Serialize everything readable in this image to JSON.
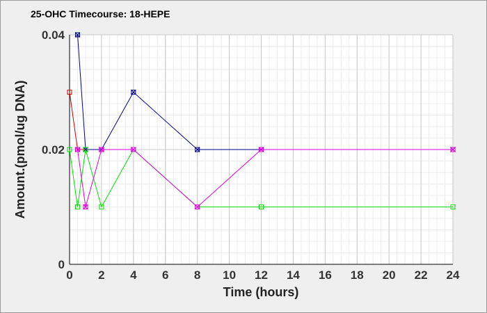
{
  "chart_data": {
    "type": "line",
    "title": "25-OHC Timecourse: 18-HEPE",
    "xlabel": "Time (hours)",
    "ylabel": "Amount.(pmol/ug DNA)",
    "xlim": [
      0,
      24
    ],
    "ylim": [
      0,
      0.04
    ],
    "x_ticks": [
      0,
      2,
      4,
      6,
      8,
      10,
      12,
      14,
      16,
      18,
      20,
      22,
      24
    ],
    "x_tick_labels": [
      "0",
      "2",
      "4",
      "6",
      "8",
      "10",
      "12",
      "14",
      "16",
      "18",
      "20",
      "22",
      "24"
    ],
    "y_ticks": [
      0,
      0.02,
      0.04
    ],
    "y_tick_labels": [
      "0",
      "0.02",
      "0.04"
    ],
    "grid": true,
    "legend": "none",
    "series": [
      {
        "color": "#000080",
        "marker": "cross-square",
        "x": [
          0.5,
          1,
          2,
          4,
          8,
          12,
          24
        ],
        "y": [
          0.04,
          0.02,
          0.02,
          0.03,
          0.02,
          0.02,
          0.02
        ]
      },
      {
        "color": "#cc0000",
        "marker": "square",
        "x": [
          0,
          0.5,
          1
        ],
        "y": [
          0.03,
          0.02,
          0.02
        ]
      },
      {
        "color": "#00dd00",
        "marker": "square",
        "x": [
          0,
          0.5,
          1,
          2,
          4,
          8,
          12,
          24
        ],
        "y": [
          0.02,
          0.01,
          0.02,
          0.01,
          0.02,
          0.01,
          0.01,
          0.01
        ]
      },
      {
        "color": "#dd00dd",
        "marker": "cross-square",
        "x": [
          0.5,
          1,
          2,
          4,
          8,
          12,
          24
        ],
        "y": [
          0.02,
          0.01,
          0.02,
          0.02,
          0.01,
          0.02,
          0.02
        ]
      }
    ]
  }
}
